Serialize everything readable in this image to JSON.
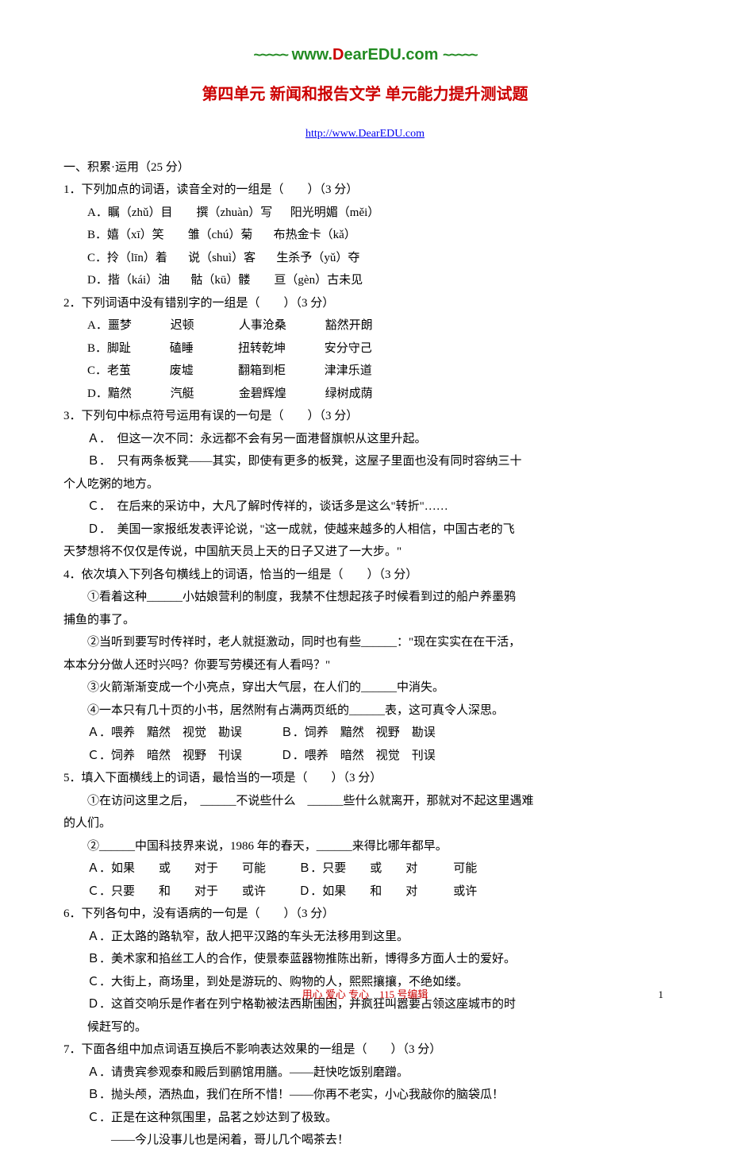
{
  "header": {
    "wave": "~~~~~",
    "url_pre": "www.",
    "url_d": "D",
    "url_rest": "earEDU.com"
  },
  "title": "第四单元 新闻和报告文学 单元能力提升测试题",
  "link": {
    "text": "http://www.DearEDU.com",
    "href": "http://www.DearEDU.com"
  },
  "section1_title": "一、积累·运用（25 分）",
  "q1": {
    "stem": "1．下列加点的词语，读音全对的一组是（　　）（3 分）",
    "a": "A．瞩（zhǔ）目        撰（zhuàn）写      阳光明媚（měi）",
    "b": "B．嬉（xī）笑        雏（chú）菊       布热金卡（kǎ）",
    "c": "C．拎（līn）着       说（shuì）客       生杀予（yǔ）夺",
    "d": "D．揩（kái）油       骷（kū）髅        亘（gèn）古未见"
  },
  "q2": {
    "stem": "2．下列词语中没有错别字的一组是（　　）（3 分）",
    "a": "A．噩梦             迟顿               人事沧桑             豁然开朗",
    "b": "B．脚趾             磕睡               扭转乾坤             安分守己",
    "c": "C．老茧             废墟               翻箱到柜             津津乐道",
    "d": "D．黯然             汽艇               金碧辉煌             绿树成荫"
  },
  "q3": {
    "stem": "3．下列句中标点符号运用有误的一句是（　　）（3 分）",
    "a": "Ａ．　但这一次不同：永远都不会有另一面港督旗帜从这里升起。",
    "b1": "Ｂ．　只有两条板凳——其实，即使有更多的板凳，这屋子里面也没有同时容纳三十",
    "b2": "个人吃粥的地方。",
    "c": "Ｃ．　在后来的采访中，大凡了解时传祥的，谈话多是这么\"转折\"……",
    "d1": "Ｄ．　美国一家报纸发表评论说，\"这一成就，使越来越多的人相信，中国古老的飞",
    "d2": "天梦想将不仅仅是传说，中国航天员上天的日子又进了一大步。\""
  },
  "q4": {
    "stem": "4．依次填入下列各句横线上的词语，恰当的一组是（　　）（3 分）",
    "s1a": "①看着这种______小姑娘营利的制度，我禁不住想起孩子时候看到过的船户养墨鸦",
    "s1b": "捕鱼的事了。",
    "s2a": "②当听到要写时传祥时，老人就挺激动，同时也有些______：\"现在实实在在干活，",
    "s2b": "本本分分做人还时兴吗？你要写劳模还有人看吗？\"",
    "s3": "③火箭渐渐变成一个小亮点，穿出大气层，在人们的______中消失。",
    "s4": "④一本只有几十页的小书，居然附有占满两页纸的______表，这可真令人深思。",
    "optAB": "Ａ．喂养　黯然　视觉　勘误             Ｂ．饲养　黯然　视野　勘误",
    "optCD": "Ｃ．饲养　暗然　视野　刊误             Ｄ．喂养　暗然　视觉　刊误"
  },
  "q5": {
    "stem": "5．填入下面横线上的词语，最恰当的一项是（　　）（3 分）",
    "s1a": "①在访问这里之后，　______不说些什么　______些什么就离开，那就对不起这里遇难",
    "s1b": "的人们。",
    "s2": "②______中国科技界来说，1986 年的春天，______来得比哪年都早。",
    "optAB": "Ａ．如果　　或　　对于　　可能           Ｂ．只要　　或　　对　　　可能",
    "optCD": "Ｃ．只要　　和　　对于　　或许           Ｄ．如果　　和　　对　　　或许"
  },
  "q6": {
    "stem": "6．下列各句中，没有语病的一句是（　　）（3 分）",
    "a": "Ａ．正太路的路轨窄，敌人把平汉路的车头无法移用到这里。",
    "b": "Ｂ．美术家和掐丝工人的合作，使景泰蓝器物推陈出新，博得多方面人士的爱好。",
    "c": "Ｃ．大街上，商场里，到处是游玩的、购物的人，熙熙攘攘，不绝如缕。",
    "d1": "Ｄ．这首交响乐是作者在列宁格勒被法西斯围困，并疯狂叫嚣要占领这座城市的时",
    "d2": "候赶写的。"
  },
  "q7": {
    "stem": "7．下面各组中加点词语互换后不影响表达效果的一组是（　　）（3 分）",
    "a": "Ａ．请贵宾参观泰和殿后到鹂馆用膳。——赶快吃饭别磨蹭。",
    "b": "Ｂ．抛头颅，洒热血，我们在所不惜！——你再不老实，小心我敲你的脑袋瓜！",
    "c1": "Ｃ．正是在这种氛围里，品茗之妙达到了极致。",
    "c2": "——今儿没事儿也是闲着，哥儿几个喝茶去！"
  },
  "footer": {
    "text": "用心 爱心 专心　115 号编辑",
    "page": "1"
  }
}
